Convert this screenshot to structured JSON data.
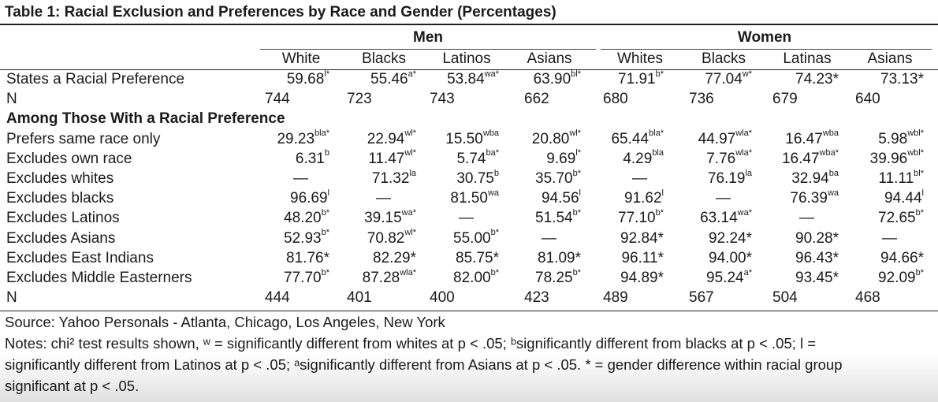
{
  "title": "Table 1: Racial Exclusion and Preferences by Race and Gender (Percentages)",
  "groups": {
    "men": "Men",
    "women": "Women"
  },
  "columns": [
    "White",
    "Blacks",
    "Latinos",
    "Asians",
    "Whites",
    "Blacks",
    "Latinas",
    "Asians"
  ],
  "rows_top": [
    {
      "label": "States a Racial Preference",
      "cells": [
        [
          "59.68",
          "l*"
        ],
        [
          "55.46",
          "a*"
        ],
        [
          "53.84",
          "wa*"
        ],
        [
          "63.90",
          "bl*"
        ],
        [
          "71.91",
          "b*"
        ],
        [
          "77.04",
          "w*"
        ],
        [
          "74.23*",
          ""
        ],
        [
          "73.13*",
          ""
        ]
      ]
    },
    {
      "label": "N",
      "cells": [
        [
          "744",
          ""
        ],
        [
          "723",
          ""
        ],
        [
          "743",
          ""
        ],
        [
          "662",
          ""
        ],
        [
          "680",
          ""
        ],
        [
          "736",
          ""
        ],
        [
          "679",
          ""
        ],
        [
          "640",
          ""
        ]
      ]
    }
  ],
  "section_label": "Among Those With a Racial Preference",
  "rows_main": [
    {
      "label": "Prefers same race only",
      "cells": [
        [
          "29.23",
          "bla*"
        ],
        [
          "22.94",
          "wl*"
        ],
        [
          "15.50",
          "wba"
        ],
        [
          "20.80",
          "wl*"
        ],
        [
          "65.44",
          "bla*"
        ],
        [
          "44.97",
          "wla*"
        ],
        [
          "16.47",
          "wba"
        ],
        [
          "5.98",
          "wbl*"
        ]
      ]
    },
    {
      "label": "Excludes own race",
      "cells": [
        [
          "6.31",
          "b"
        ],
        [
          "11.47",
          "wl*"
        ],
        [
          "5.74",
          "ba*"
        ],
        [
          "9.69",
          "l*"
        ],
        [
          "4.29",
          "bla"
        ],
        [
          "7.76",
          "wla*"
        ],
        [
          "16.47",
          "wba*"
        ],
        [
          "39.96",
          "wbl*"
        ]
      ]
    },
    {
      "label": "Excludes whites",
      "cells": [
        [
          "—",
          ""
        ],
        [
          "71.32",
          "la"
        ],
        [
          "30.75",
          "b"
        ],
        [
          "35.70",
          "b*"
        ],
        [
          "—",
          ""
        ],
        [
          "76.19",
          "la"
        ],
        [
          "32.94",
          "ba"
        ],
        [
          "11.11",
          "bl*"
        ]
      ]
    },
    {
      "label": "Excludes blacks",
      "cells": [
        [
          "96.69",
          "l"
        ],
        [
          "—",
          ""
        ],
        [
          "81.50",
          "wa"
        ],
        [
          "94.56",
          "l"
        ],
        [
          "91.62",
          "l"
        ],
        [
          "—",
          ""
        ],
        [
          "76.39",
          "wa"
        ],
        [
          "94.44",
          "l"
        ]
      ]
    },
    {
      "label": "Excludes Latinos",
      "cells": [
        [
          "48.20",
          "b*"
        ],
        [
          "39.15",
          "wa*"
        ],
        [
          "—",
          ""
        ],
        [
          "51.54",
          "b*"
        ],
        [
          "77.10",
          "b*"
        ],
        [
          "63.14",
          "wa*"
        ],
        [
          "—",
          ""
        ],
        [
          "72.65",
          "b*"
        ]
      ]
    },
    {
      "label": "Excludes Asians",
      "cells": [
        [
          "52.93",
          "b*"
        ],
        [
          "70.82",
          "wl*"
        ],
        [
          "55.00",
          "b*"
        ],
        [
          "—",
          ""
        ],
        [
          "92.84*",
          ""
        ],
        [
          "92.24*",
          ""
        ],
        [
          "90.28*",
          ""
        ],
        [
          "—",
          ""
        ]
      ]
    },
    {
      "label": "Excludes East Indians",
      "cells": [
        [
          "81.76*",
          ""
        ],
        [
          "82.29*",
          ""
        ],
        [
          "85.75*",
          ""
        ],
        [
          "81.09*",
          ""
        ],
        [
          "96.11*",
          ""
        ],
        [
          "94.00*",
          ""
        ],
        [
          "96.43*",
          ""
        ],
        [
          "94.66*",
          ""
        ]
      ]
    },
    {
      "label": "Excludes Middle Easterners",
      "cells": [
        [
          "77.70",
          "b*"
        ],
        [
          "87.28",
          "wla*"
        ],
        [
          "82.00",
          "b*"
        ],
        [
          "78.25",
          "b*"
        ],
        [
          "94.89*",
          ""
        ],
        [
          "95.24",
          "a*"
        ],
        [
          "93.45*",
          ""
        ],
        [
          "92.09",
          "b*"
        ]
      ]
    },
    {
      "label": "N",
      "cells": [
        [
          "444",
          ""
        ],
        [
          "401",
          ""
        ],
        [
          "400",
          ""
        ],
        [
          "423",
          ""
        ],
        [
          "489",
          ""
        ],
        [
          "567",
          ""
        ],
        [
          "504",
          ""
        ],
        [
          "468",
          ""
        ]
      ]
    }
  ],
  "footer": {
    "source": "Source: Yahoo Personals - Atlanta, Chicago, Los Angeles, New York",
    "notes_1": "Notes: chi² test results shown, ʷ = significantly different from whites at p < .05; ᵇsignificantly different from blacks at p < .05; l  =",
    "notes_2": "significantly different from Latinos at p < .05; ᵃsignificantly different from Asians at p < .05. * = gender difference within racial group",
    "notes_3": "significant at p < .05."
  }
}
